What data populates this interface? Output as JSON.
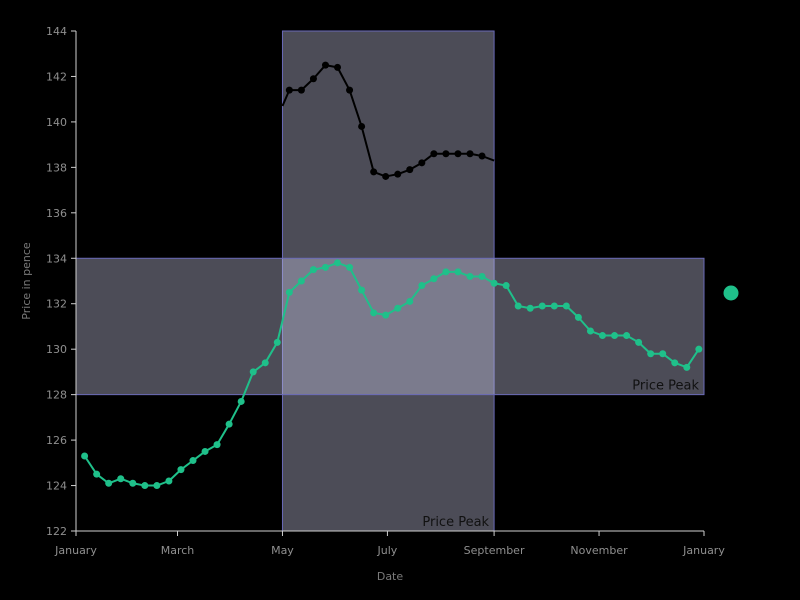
{
  "chart_data": {
    "type": "line",
    "xlabel": "Date",
    "ylabel": "Price in pence",
    "ylim": [
      122,
      144
    ],
    "yticks": [
      122,
      124,
      126,
      128,
      130,
      132,
      134,
      136,
      138,
      140,
      142,
      144
    ],
    "x_domain": [
      "2023-01-01",
      "2024-01-01"
    ],
    "x_ticks": [
      {
        "date": "2023-01-01",
        "label": "January"
      },
      {
        "date": "2023-03-01",
        "label": "March"
      },
      {
        "date": "2023-05-01",
        "label": "May"
      },
      {
        "date": "2023-07-01",
        "label": "July"
      },
      {
        "date": "2023-09-01",
        "label": "September"
      },
      {
        "date": "2023-11-01",
        "label": "November"
      },
      {
        "date": "2024-01-01",
        "label": "January"
      }
    ],
    "grid": false,
    "legend": "none",
    "series": [
      {
        "color": "#1fc08a",
        "points": [
          [
            "2023-01-06",
            125.3
          ],
          [
            "2023-01-13",
            124.5
          ],
          [
            "2023-01-20",
            124.1
          ],
          [
            "2023-01-27",
            124.3
          ],
          [
            "2023-02-03",
            124.1
          ],
          [
            "2023-02-10",
            124.0
          ],
          [
            "2023-02-17",
            124.0
          ],
          [
            "2023-02-24",
            124.2
          ],
          [
            "2023-03-03",
            124.7
          ],
          [
            "2023-03-10",
            125.1
          ],
          [
            "2023-03-17",
            125.5
          ],
          [
            "2023-03-24",
            125.8
          ],
          [
            "2023-03-31",
            126.7
          ],
          [
            "2023-04-07",
            127.7
          ],
          [
            "2023-04-14",
            129.0
          ],
          [
            "2023-04-21",
            129.4
          ],
          [
            "2023-04-28",
            130.3
          ],
          [
            "2023-05-05",
            132.5
          ],
          [
            "2023-05-12",
            133.0
          ],
          [
            "2023-05-19",
            133.5
          ],
          [
            "2023-05-26",
            133.6
          ],
          [
            "2023-06-02",
            133.8
          ],
          [
            "2023-06-09",
            133.6
          ],
          [
            "2023-06-16",
            132.6
          ],
          [
            "2023-06-23",
            131.6
          ],
          [
            "2023-06-30",
            131.5
          ],
          [
            "2023-07-07",
            131.8
          ],
          [
            "2023-07-14",
            132.1
          ],
          [
            "2023-07-21",
            132.8
          ],
          [
            "2023-07-28",
            133.1
          ],
          [
            "2023-08-04",
            133.4
          ],
          [
            "2023-08-11",
            133.4
          ],
          [
            "2023-08-18",
            133.2
          ],
          [
            "2023-08-25",
            133.2
          ],
          [
            "2023-09-01",
            132.9
          ],
          [
            "2023-09-08",
            132.8
          ],
          [
            "2023-09-15",
            131.9
          ],
          [
            "2023-09-22",
            131.8
          ],
          [
            "2023-09-29",
            131.9
          ],
          [
            "2023-10-06",
            131.9
          ],
          [
            "2023-10-13",
            131.9
          ],
          [
            "2023-10-20",
            131.4
          ],
          [
            "2023-10-27",
            130.8
          ],
          [
            "2023-11-03",
            130.6
          ],
          [
            "2023-11-10",
            130.6
          ],
          [
            "2023-11-17",
            130.6
          ],
          [
            "2023-11-24",
            130.3
          ],
          [
            "2023-12-01",
            129.8
          ],
          [
            "2023-12-08",
            129.8
          ],
          [
            "2023-12-15",
            129.4
          ],
          [
            "2023-12-22",
            129.2
          ],
          [
            "2023-12-29",
            130.0
          ]
        ]
      },
      {
        "color": "#000000",
        "points": [
          [
            "2023-05-01",
            140.7
          ],
          [
            "2023-05-05",
            141.4
          ],
          [
            "2023-05-12",
            141.4
          ],
          [
            "2023-05-19",
            141.9
          ],
          [
            "2023-05-26",
            142.5
          ],
          [
            "2023-06-02",
            142.4
          ],
          [
            "2023-06-09",
            141.4
          ],
          [
            "2023-06-16",
            139.8
          ],
          [
            "2023-06-23",
            137.8
          ],
          [
            "2023-06-30",
            137.6
          ],
          [
            "2023-07-07",
            137.7
          ],
          [
            "2023-07-14",
            137.9
          ],
          [
            "2023-07-21",
            138.2
          ],
          [
            "2023-07-28",
            138.6
          ],
          [
            "2023-08-04",
            138.6
          ],
          [
            "2023-08-11",
            138.6
          ],
          [
            "2023-08-18",
            138.6
          ],
          [
            "2023-08-25",
            138.5
          ],
          [
            "2023-09-01",
            138.3
          ]
        ]
      }
    ],
    "annotations": [
      {
        "kind": "vertical-band",
        "x_range": [
          "2023-05-01",
          "2023-09-01"
        ],
        "label": "Price Peak"
      },
      {
        "kind": "horizontal-band",
        "y_range": [
          128,
          134
        ],
        "label": "Price Peak"
      }
    ],
    "marker": {
      "color": "#1fc08a"
    }
  }
}
